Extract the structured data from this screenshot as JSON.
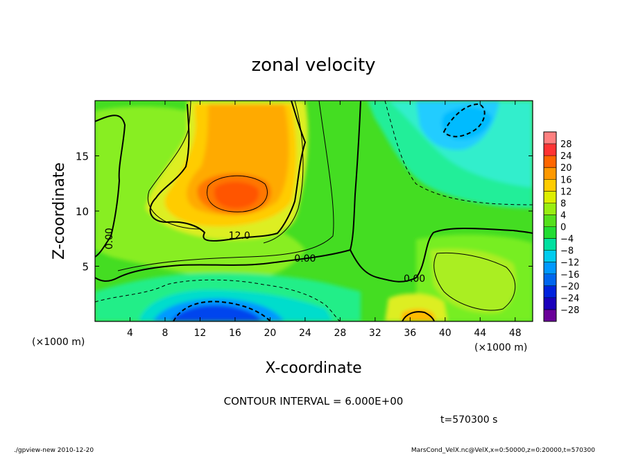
{
  "chart_data": {
    "type": "heatmap",
    "title": "zonal velocity",
    "xlabel": "X-coordinate",
    "ylabel": "Z-coordinate",
    "x_units": "(×1000 m)",
    "y_units": "(×1000 m)",
    "xlim": [
      0,
      50
    ],
    "ylim": [
      0,
      20
    ],
    "x_ticks": [
      4,
      8,
      12,
      16,
      20,
      24,
      28,
      32,
      36,
      40,
      44,
      48
    ],
    "y_ticks": [
      5,
      10,
      15
    ],
    "colorbar_levels": [
      -28,
      -24,
      -20,
      -16,
      -12,
      -8,
      -4,
      0,
      4,
      8,
      12,
      16,
      20,
      24,
      28
    ],
    "colorbar_labels": [
      "28",
      "24",
      "20",
      "16",
      "12",
      "8",
      "4",
      "0",
      "−4",
      "−8",
      "−12",
      "−16",
      "−20",
      "−24",
      "−28"
    ],
    "contour_interval_text": "CONTOUR INTERVAL = 6.000E+00",
    "time_text": "t=570300 s",
    "contour_labels": [
      {
        "text": "12.0",
        "x": 16.5,
        "z": 7.5
      },
      {
        "text": "0.00",
        "x": 24.0,
        "z": 5.4
      },
      {
        "text": "0.00",
        "x": 36.5,
        "z": 3.6
      },
      {
        "text": "0.00",
        "x": 2.0,
        "z": 7.5
      }
    ],
    "features": [
      {
        "kind": "max",
        "x": 16,
        "z": 11.5,
        "value": 20
      },
      {
        "kind": "min",
        "x": 15,
        "z": 0.8,
        "value": -18
      },
      {
        "kind": "min",
        "x": 42,
        "z": 17.5,
        "value": -10
      },
      {
        "kind": "max",
        "x": 36,
        "z": 0.5,
        "value": 12
      }
    ]
  },
  "footer": {
    "left": "./gpview-new   2010-12-20",
    "right": "MarsCond_VelX.nc@VelX,x=0:50000,z=0:20000,t=570300"
  },
  "colors": {
    "background": "#ffffff",
    "neutral_green": "#33dd33"
  }
}
